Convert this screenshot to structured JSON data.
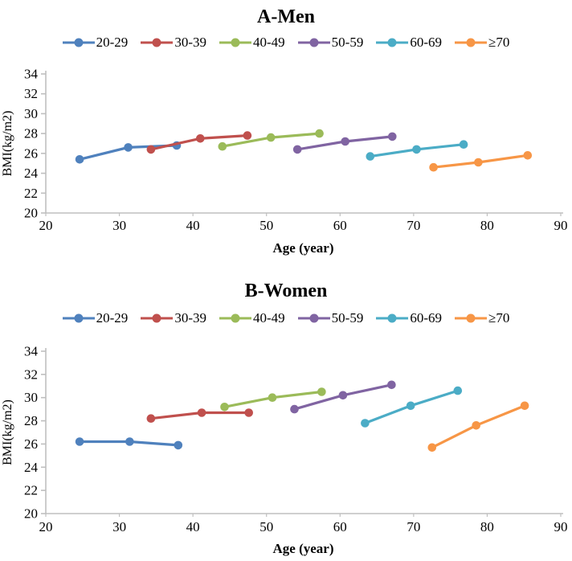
{
  "axis_color": "#BFBFBF",
  "chart_data": [
    {
      "type": "line",
      "title": "A-Men",
      "xlabel": "Age (year)",
      "ylabel": "BMI(kg/m2)",
      "xlim": [
        20,
        90
      ],
      "xticks": [
        20,
        30,
        40,
        50,
        60,
        70,
        80,
        90
      ],
      "ylim": [
        20,
        34
      ],
      "yticks": [
        20,
        22,
        24,
        26,
        28,
        30,
        32,
        34
      ],
      "grid": false,
      "legend_position": "top",
      "series": [
        {
          "name": "20-29",
          "color": "#4F81BD",
          "points": [
            [
              24.6,
              25.4
            ],
            [
              31.2,
              26.6
            ],
            [
              37.8,
              26.8
            ]
          ]
        },
        {
          "name": "30-39",
          "color": "#C0504D",
          "points": [
            [
              34.3,
              26.4
            ],
            [
              41.0,
              27.5
            ],
            [
              47.4,
              27.8
            ]
          ]
        },
        {
          "name": "40-49",
          "color": "#9BBB59",
          "points": [
            [
              44.0,
              26.7
            ],
            [
              50.6,
              27.6
            ],
            [
              57.2,
              28.0
            ]
          ]
        },
        {
          "name": "50-59",
          "color": "#8064A2",
          "points": [
            [
              54.2,
              26.4
            ],
            [
              60.7,
              27.2
            ],
            [
              67.1,
              27.7
            ]
          ]
        },
        {
          "name": "60-69",
          "color": "#4BACC6",
          "points": [
            [
              64.1,
              25.7
            ],
            [
              70.4,
              26.4
            ],
            [
              76.8,
              26.9
            ]
          ]
        },
        {
          "name": "≥70",
          "color": "#F79646",
          "points": [
            [
              72.7,
              24.6
            ],
            [
              78.8,
              25.1
            ],
            [
              85.5,
              25.8
            ]
          ]
        }
      ]
    },
    {
      "type": "line",
      "title": "B-Women",
      "xlabel": "Age (year)",
      "ylabel": "BMI(kg/m2)",
      "xlim": [
        20,
        90
      ],
      "xticks": [
        20,
        30,
        40,
        50,
        60,
        70,
        80,
        90
      ],
      "ylim": [
        20,
        34
      ],
      "yticks": [
        20,
        22,
        24,
        26,
        28,
        30,
        32,
        34
      ],
      "grid": false,
      "legend_position": "top",
      "series": [
        {
          "name": "20-29",
          "color": "#4F81BD",
          "points": [
            [
              24.6,
              26.2
            ],
            [
              31.4,
              26.2
            ],
            [
              38.0,
              25.9
            ]
          ]
        },
        {
          "name": "30-39",
          "color": "#C0504D",
          "points": [
            [
              34.3,
              28.2
            ],
            [
              41.2,
              28.7
            ],
            [
              47.6,
              28.7
            ]
          ]
        },
        {
          "name": "40-49",
          "color": "#9BBB59",
          "points": [
            [
              44.3,
              29.2
            ],
            [
              50.8,
              30.0
            ],
            [
              57.5,
              30.5
            ]
          ]
        },
        {
          "name": "50-59",
          "color": "#8064A2",
          "points": [
            [
              53.8,
              29.0
            ],
            [
              60.4,
              30.2
            ],
            [
              67.0,
              31.1
            ]
          ]
        },
        {
          "name": "60-69",
          "color": "#4BACC6",
          "points": [
            [
              63.4,
              27.8
            ],
            [
              69.6,
              29.3
            ],
            [
              76.0,
              30.6
            ]
          ]
        },
        {
          "name": "≥70",
          "color": "#F79646",
          "points": [
            [
              72.5,
              25.7
            ],
            [
              78.5,
              27.6
            ],
            [
              85.1,
              29.3
            ]
          ]
        }
      ]
    }
  ]
}
